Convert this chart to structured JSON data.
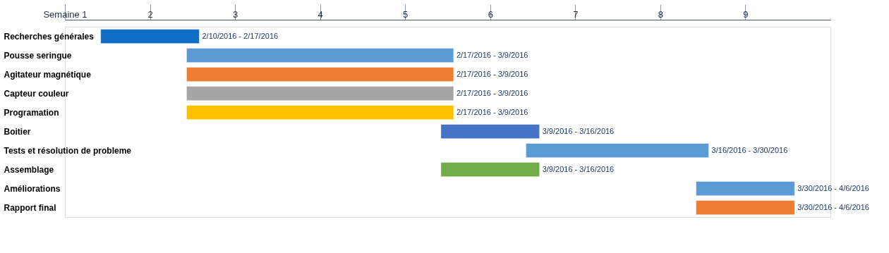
{
  "chart_data": {
    "type": "bar",
    "orientation": "horizontal",
    "categories": [
      "Recherches générales",
      "Pousse seringue",
      "Agitateur magnétique",
      "Capteur couleur",
      "Programation",
      "Boitier",
      "Tests et résolution de probleme",
      "Assemblage",
      "Améliorations",
      "Rapport final"
    ],
    "base": [
      1.42,
      2.43,
      2.43,
      2.43,
      2.43,
      5.42,
      6.42,
      5.42,
      8.42,
      8.42
    ],
    "values": [
      1.16,
      3.14,
      3.14,
      3.14,
      3.14,
      1.16,
      2.15,
      1.16,
      1.16,
      1.16
    ],
    "colors": [
      "#0f6fc6",
      "#5b9bd5",
      "#ed7d31",
      "#a5a5a5",
      "#ffc000",
      "#4472c4",
      "#5b9bd5",
      "#70ad47",
      "#5b9bd5",
      "#ed7d31"
    ],
    "value_labels": [
      "2/10/2016 - 2/17/2016",
      "2/17/2016 - 3/9/2016",
      "2/17/2016 - 3/9/2016",
      "2/17/2016 - 3/9/2016",
      "2/17/2016 - 3/9/2016",
      "3/9/2016 - 3/16/2016",
      "3/16/2016 - 3/30/2016",
      "3/9/2016 - 3/16/2016",
      "3/30/2016 - 4/6/2016",
      "3/30/2016 - 4/6/2016"
    ],
    "xlim": [
      1,
      10
    ],
    "xticks": [
      {
        "value": 1,
        "label": "Semaine 1"
      },
      2,
      3,
      4,
      5,
      6,
      7,
      8,
      9
    ],
    "grid": false
  }
}
